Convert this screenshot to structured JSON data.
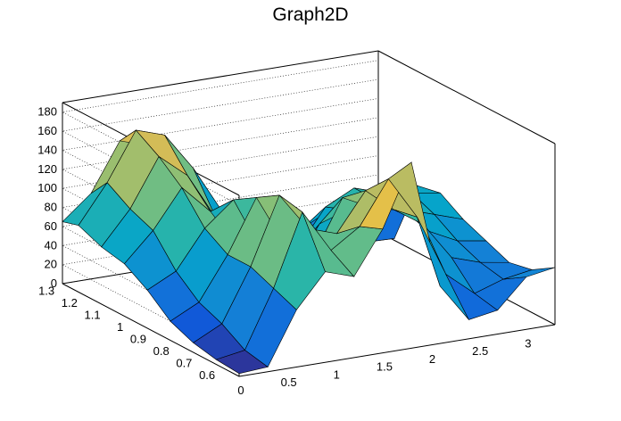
{
  "chart_data": {
    "type": "surface",
    "title": "Graph2D",
    "xlabel": "",
    "ylabel": "",
    "zlabel": "",
    "xlim": [
      0,
      3.3
    ],
    "ylim": [
      0.55,
      1.32
    ],
    "zlim": [
      0,
      190
    ],
    "x_ticks": [
      "0",
      "0.5",
      "1",
      "1.5",
      "2",
      "2.5",
      "3"
    ],
    "y_ticks": [
      "0.6",
      "0.7",
      "0.8",
      "0.9",
      "1",
      "1.1",
      "1.2",
      "1.3"
    ],
    "z_ticks": [
      "0",
      "20",
      "40",
      "60",
      "80",
      "100",
      "120",
      "140",
      "160",
      "180"
    ],
    "grid": true,
    "colormap": [
      "#352a87",
      "#0f5cdd",
      "#1481d6",
      "#06a4ca",
      "#2eb7a4",
      "#87bf77",
      "#d1bb59",
      "#fec832",
      "#f9fb0e"
    ],
    "grid_x": [
      0,
      0.3,
      0.6,
      0.9,
      1.2,
      1.5,
      1.8,
      2.1,
      2.4,
      2.7,
      3.0,
      3.3
    ],
    "grid_y": [
      0.55,
      0.65,
      0.75,
      0.85,
      0.95,
      1.05,
      1.15,
      1.25,
      1.32
    ],
    "z": [
      [
        3,
        5,
        60,
        95,
        85,
        130,
        195,
        60,
        20,
        25,
        55,
        60
      ],
      [
        5,
        10,
        70,
        145,
        100,
        120,
        165,
        120,
        55,
        30,
        40,
        45
      ],
      [
        10,
        25,
        80,
        150,
        110,
        100,
        140,
        115,
        95,
        55,
        45,
        40
      ],
      [
        20,
        35,
        80,
        135,
        80,
        65,
        120,
        105,
        100,
        70,
        55,
        50
      ],
      [
        40,
        55,
        95,
        120,
        60,
        35,
        80,
        90,
        95,
        80,
        70,
        60
      ],
      [
        55,
        85,
        125,
        95,
        50,
        30,
        40,
        80,
        95,
        85,
        80,
        75
      ],
      [
        60,
        95,
        145,
        120,
        70,
        35,
        25,
        45,
        60,
        65,
        70,
        70
      ],
      [
        70,
        110,
        160,
        150,
        110,
        60,
        30,
        20,
        15,
        5,
        3,
        2
      ],
      [
        65,
        90,
        140,
        130,
        105,
        55,
        20,
        8,
        5,
        3,
        2,
        2
      ]
    ]
  }
}
